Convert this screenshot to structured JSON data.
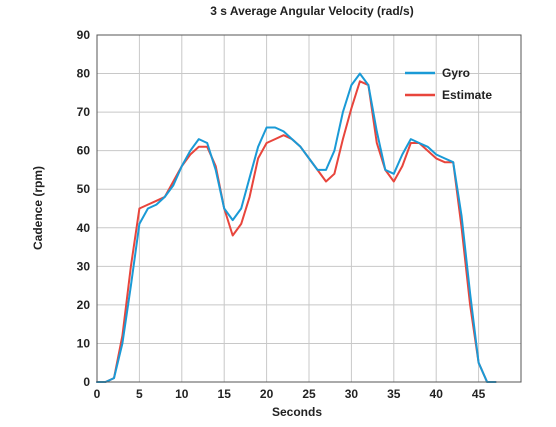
{
  "chart_data": {
    "type": "line",
    "title": "3 s Average Angular Velocity (rad/s)",
    "xlabel": "Seconds",
    "ylabel": "Cadence (rpm)",
    "xlim": [
      0,
      50
    ],
    "ylim": [
      0,
      90
    ],
    "xticks": [
      0,
      5,
      10,
      15,
      20,
      25,
      30,
      35,
      40,
      45
    ],
    "yticks": [
      0,
      10,
      20,
      30,
      40,
      50,
      60,
      70,
      80,
      90
    ],
    "grid": true,
    "legend_position": "top-right",
    "series": [
      {
        "name": "Gyro",
        "color": "#1a9ad6",
        "points": [
          [
            0,
            0
          ],
          [
            1,
            0
          ],
          [
            2,
            1
          ],
          [
            3,
            10
          ],
          [
            4,
            25
          ],
          [
            5,
            41
          ],
          [
            6,
            45
          ],
          [
            7,
            46
          ],
          [
            8,
            48
          ],
          [
            9,
            51
          ],
          [
            10,
            56
          ],
          [
            11,
            60
          ],
          [
            12,
            63
          ],
          [
            13,
            62
          ],
          [
            14,
            55
          ],
          [
            15,
            45
          ],
          [
            16,
            42
          ],
          [
            17,
            45
          ],
          [
            18,
            53
          ],
          [
            19,
            61
          ],
          [
            20,
            66
          ],
          [
            21,
            66
          ],
          [
            22,
            65
          ],
          [
            23,
            63
          ],
          [
            24,
            61
          ],
          [
            25,
            58
          ],
          [
            26,
            55
          ],
          [
            27,
            55
          ],
          [
            28,
            60
          ],
          [
            29,
            70
          ],
          [
            30,
            77
          ],
          [
            31,
            80
          ],
          [
            32,
            77
          ],
          [
            33,
            65
          ],
          [
            34,
            55
          ],
          [
            35,
            54
          ],
          [
            36,
            59
          ],
          [
            37,
            63
          ],
          [
            38,
            62
          ],
          [
            39,
            61
          ],
          [
            40,
            59
          ],
          [
            41,
            58
          ],
          [
            42,
            57
          ],
          [
            43,
            43
          ],
          [
            44,
            23
          ],
          [
            45,
            5
          ],
          [
            46,
            0
          ],
          [
            47,
            0
          ]
        ]
      },
      {
        "name": "Estimate",
        "color": "#e8453c",
        "points": [
          [
            0,
            0
          ],
          [
            1,
            0
          ],
          [
            2,
            1
          ],
          [
            3,
            12
          ],
          [
            4,
            30
          ],
          [
            5,
            45
          ],
          [
            6,
            46
          ],
          [
            7,
            47
          ],
          [
            8,
            48
          ],
          [
            9,
            52
          ],
          [
            10,
            56
          ],
          [
            11,
            59
          ],
          [
            12,
            61
          ],
          [
            13,
            61
          ],
          [
            14,
            56
          ],
          [
            15,
            45
          ],
          [
            16,
            38
          ],
          [
            17,
            41
          ],
          [
            18,
            48
          ],
          [
            19,
            58
          ],
          [
            20,
            62
          ],
          [
            21,
            63
          ],
          [
            22,
            64
          ],
          [
            23,
            63
          ],
          [
            24,
            61
          ],
          [
            25,
            58
          ],
          [
            26,
            55
          ],
          [
            27,
            52
          ],
          [
            28,
            54
          ],
          [
            29,
            63
          ],
          [
            30,
            71
          ],
          [
            31,
            78
          ],
          [
            32,
            77
          ],
          [
            33,
            62
          ],
          [
            34,
            55
          ],
          [
            35,
            52
          ],
          [
            36,
            56
          ],
          [
            37,
            62
          ],
          [
            38,
            62
          ],
          [
            39,
            60
          ],
          [
            40,
            58
          ],
          [
            41,
            57
          ],
          [
            42,
            57
          ],
          [
            43,
            40
          ],
          [
            44,
            20
          ],
          [
            45,
            5
          ],
          [
            46,
            0
          ],
          [
            47,
            0
          ]
        ]
      }
    ]
  }
}
